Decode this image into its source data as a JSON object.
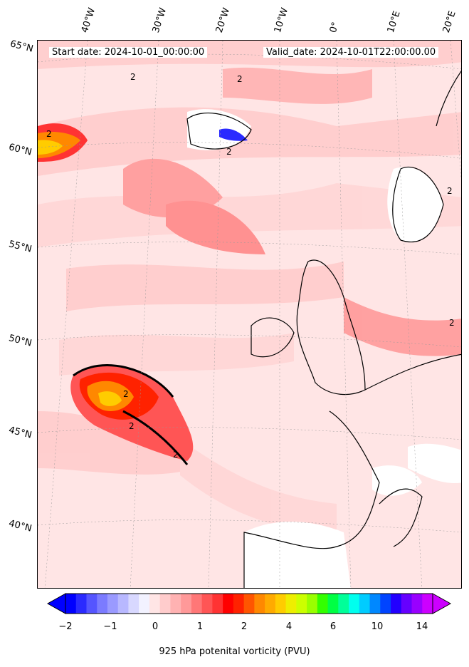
{
  "header": {
    "start_date": "Start date: 2024-10-01_00:00:00",
    "valid_date": "Valid_date: 2024-10-01T22:00:00.00"
  },
  "lat_labels": [
    "65°N",
    "60°N",
    "55°N",
    "50°N",
    "45°N",
    "40°N"
  ],
  "lon_labels": [
    "40°W",
    "30°W",
    "20°W",
    "10°W",
    "0°",
    "10°E",
    "20°E"
  ],
  "contour_label": "2",
  "colorbar": {
    "label": "925 hPa potenital vorticity (PVU)",
    "ticks": [
      "−2",
      "−1",
      "0",
      "1",
      "2",
      "4",
      "6",
      "10",
      "14"
    ],
    "colors": [
      "#0000ff",
      "#2a2aff",
      "#5555ff",
      "#7b7bff",
      "#9a9aff",
      "#b8b8ff",
      "#d8d8ff",
      "#f2f2ff",
      "#ffe5e5",
      "#ffcccc",
      "#ffb2b2",
      "#ff9999",
      "#ff7777",
      "#ff5555",
      "#ff3333",
      "#ff0000",
      "#ff2200",
      "#ff5500",
      "#ff8800",
      "#ffaa00",
      "#ffcc00",
      "#eeee00",
      "#ccff00",
      "#99ff00",
      "#33ff00",
      "#00ff44",
      "#00ff99",
      "#00ffee",
      "#00ccff",
      "#0088ff",
      "#0044ff",
      "#2200ff",
      "#6600ff",
      "#9900ff",
      "#cc00ff"
    ]
  }
}
